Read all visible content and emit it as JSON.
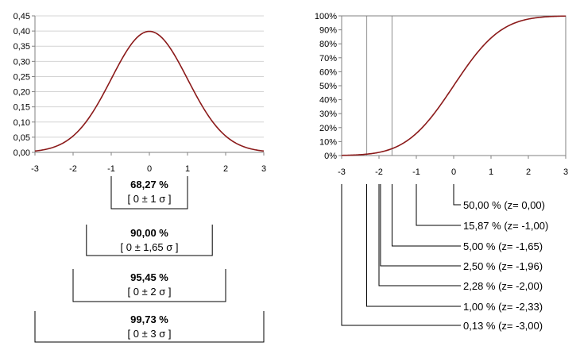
{
  "colors": {
    "curve": "#8b1a1a",
    "axis": "#808080",
    "line": "#000000",
    "ref_line": "#a0a0a0"
  },
  "chart_data": [
    {
      "type": "line",
      "function": "normal-pdf",
      "xlim": [
        -3,
        3
      ],
      "ylim": [
        0,
        0.45
      ],
      "x_ticks": [
        "-3",
        "-2",
        "-1",
        "0",
        "1",
        "2",
        "3"
      ],
      "y_ticks": [
        "0,00",
        "0,05",
        "0,10",
        "0,15",
        "0,20",
        "0,25",
        "0,30",
        "0,35",
        "0,40",
        "0,45"
      ],
      "intervals": [
        {
          "percent": "68,27 %",
          "interval": "[ 0 ± 1 σ ]",
          "half_width": 1
        },
        {
          "percent": "90,00 %",
          "interval": "[ 0 ± 1,65 σ ]",
          "half_width": 1.65
        },
        {
          "percent": "95,45 %",
          "interval": "[ 0 ± 2 σ ]",
          "half_width": 2
        },
        {
          "percent": "99,73 %",
          "interval": "[ 0 ± 3 σ ]",
          "half_width": 3
        }
      ]
    },
    {
      "type": "line",
      "function": "normal-cdf",
      "xlim": [
        -3,
        3
      ],
      "ylim": [
        0,
        1
      ],
      "x_ticks": [
        "-3",
        "-2",
        "-1",
        "0",
        "1",
        "2",
        "3"
      ],
      "y_ticks": [
        "0%",
        "10%",
        "20%",
        "30%",
        "40%",
        "50%",
        "60%",
        "70%",
        "80%",
        "90%",
        "100%"
      ],
      "reference_lines_z": [
        -2.33,
        -1.65
      ],
      "quantiles": [
        {
          "label": "50,00 % (z=  0,00)",
          "z": 0
        },
        {
          "label": "15,87 % (z= -1,00)",
          "z": -1
        },
        {
          "label": "5,00 % (z= -1,65)",
          "z": -1.65
        },
        {
          "label": "2,50 % (z= -1,96)",
          "z": -1.96
        },
        {
          "label": "2,28 % (z= -2,00)",
          "z": -2
        },
        {
          "label": "1,00 % (z= -2,33)",
          "z": -2.33
        },
        {
          "label": "0,13 % (z= -3,00)",
          "z": -3
        }
      ]
    }
  ]
}
